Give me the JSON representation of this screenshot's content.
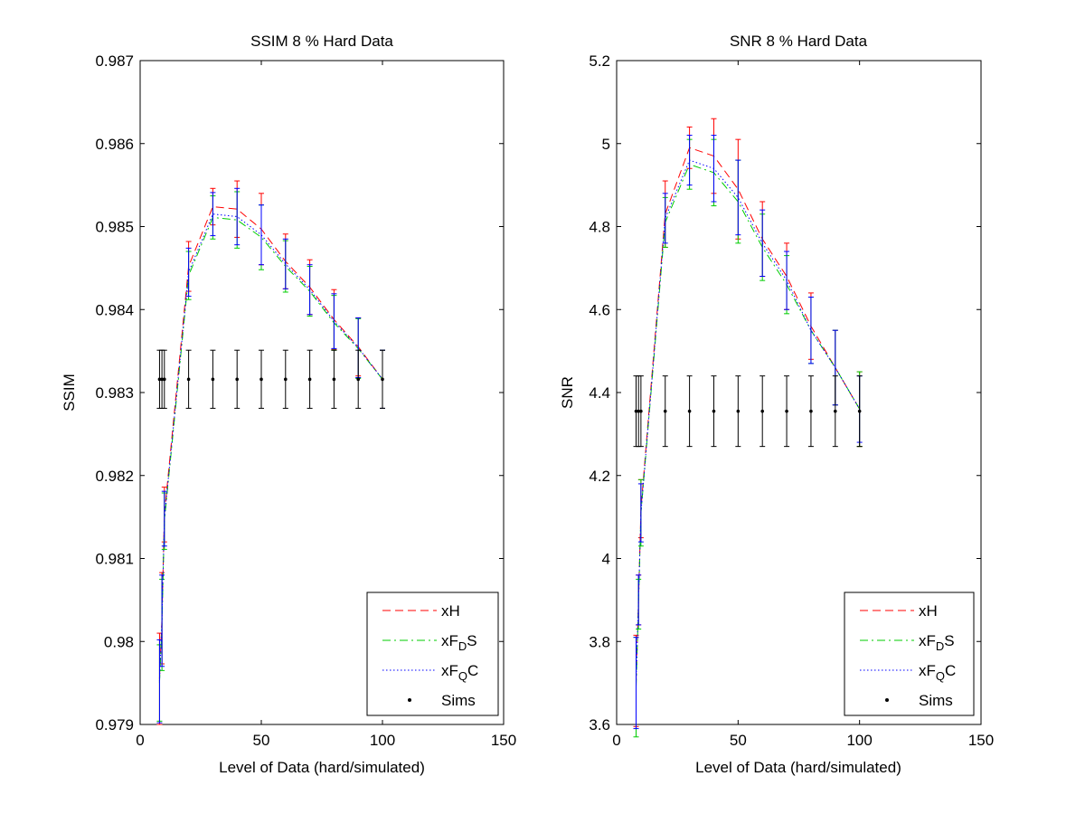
{
  "colors": {
    "xH": "#ff0000",
    "xFDS": "#00cc00",
    "xFQC": "#0000ff",
    "sims": "#000000",
    "background": "#ffffff"
  },
  "legend_position": "bottom-right",
  "chart_data": [
    {
      "type": "line",
      "title": "SSIM 8 % Hard Data",
      "xlabel": "Level of Data (hard/simulated)",
      "ylabel": "SSIM",
      "xlim": [
        0,
        150
      ],
      "ylim": [
        0.979,
        0.987
      ],
      "xticks": [
        "0",
        "50",
        "100",
        "150"
      ],
      "yticks": [
        "0.979",
        "0.98",
        "0.981",
        "0.982",
        "0.983",
        "0.984",
        "0.985",
        "0.986",
        "0.987"
      ],
      "grid": false,
      "legend": {
        "position": "bottom-right",
        "entries": [
          {
            "prefix": "xF",
            "sub": "",
            "suffix": "",
            "text": "xH"
          },
          {
            "prefix": "xF",
            "sub": "D",
            "suffix": "S",
            "text": ""
          },
          {
            "prefix": "xF",
            "sub": "Q",
            "suffix": "C",
            "text": ""
          },
          {
            "prefix": "",
            "sub": "",
            "suffix": "",
            "text": "Sims"
          }
        ]
      },
      "x": [
        8,
        9,
        10,
        20,
        30,
        40,
        50,
        60,
        70,
        80,
        90,
        100
      ],
      "series": [
        {
          "name": "xH",
          "style": "dashed",
          "values": [
            0.97955,
            0.98028,
            0.98153,
            0.98452,
            0.98524,
            0.98521,
            0.98497,
            0.98458,
            0.98427,
            0.98388,
            0.98355,
            0.98316
          ],
          "err": [
            0.00055,
            0.00055,
            0.00033,
            0.0003,
            0.00022,
            0.00034,
            0.00043,
            0.00033,
            0.00033,
            0.00036,
            0.00035,
            0.00035
          ]
        },
        {
          "name": "xFDS",
          "style": "dashdot",
          "values": [
            0.9795,
            0.9802,
            0.98145,
            0.98441,
            0.98511,
            0.98508,
            0.98487,
            0.98452,
            0.98422,
            0.98384,
            0.98353,
            0.98316
          ],
          "err": [
            0.00046,
            0.00055,
            0.00034,
            0.00029,
            0.00026,
            0.00034,
            0.00039,
            0.00031,
            0.0003,
            0.00033,
            0.00036,
            0.00035
          ]
        },
        {
          "name": "xFQC",
          "style": "dotted",
          "values": [
            0.97952,
            0.98025,
            0.98148,
            0.98445,
            0.98515,
            0.98512,
            0.9849,
            0.98455,
            0.98424,
            0.98386,
            0.98354,
            0.98316
          ],
          "err": [
            0.0005,
            0.00055,
            0.00033,
            0.00029,
            0.00026,
            0.00034,
            0.00036,
            0.0003,
            0.0003,
            0.00033,
            0.00036,
            0.00035
          ]
        },
        {
          "name": "Sims",
          "style": "points",
          "values": [
            0.98316,
            0.98316,
            0.98316,
            0.98316,
            0.98316,
            0.98316,
            0.98316,
            0.98316,
            0.98316,
            0.98316,
            0.98316,
            0.98316
          ],
          "err": [
            0.00035,
            0.00035,
            0.00035,
            0.00035,
            0.00035,
            0.00035,
            0.00035,
            0.00035,
            0.00035,
            0.00035,
            0.00035,
            0.00035
          ]
        }
      ]
    },
    {
      "type": "line",
      "title": "SNR 8 % Hard Data",
      "xlabel": "Level of Data (hard/simulated)",
      "ylabel": "SNR",
      "xlim": [
        0,
        150
      ],
      "ylim": [
        3.6,
        5.2
      ],
      "xticks": [
        "0",
        "50",
        "100",
        "150"
      ],
      "yticks": [
        "3.6",
        "3.8",
        "4",
        "4.2",
        "4.4",
        "4.6",
        "4.8",
        "5",
        "5.2"
      ],
      "grid": false,
      "legend": {
        "position": "bottom-right",
        "entries": [
          {
            "prefix": "xF",
            "sub": "",
            "suffix": "",
            "text": "xH"
          },
          {
            "prefix": "xF",
            "sub": "D",
            "suffix": "S",
            "text": ""
          },
          {
            "prefix": "xF",
            "sub": "Q",
            "suffix": "C",
            "text": ""
          },
          {
            "prefix": "",
            "sub": "",
            "suffix": "",
            "text": "Sims"
          }
        ]
      },
      "x": [
        8,
        9,
        10,
        20,
        30,
        40,
        50,
        60,
        70,
        80,
        90,
        100
      ],
      "series": [
        {
          "name": "xH",
          "style": "dashed",
          "values": [
            3.705,
            3.9,
            4.12,
            4.83,
            4.99,
            4.97,
            4.89,
            4.77,
            4.68,
            4.56,
            4.46,
            4.36
          ],
          "err": [
            0.11,
            0.06,
            0.07,
            0.08,
            0.05,
            0.09,
            0.12,
            0.09,
            0.08,
            0.08,
            0.09,
            0.09
          ]
        },
        {
          "name": "xFDS",
          "style": "dashdot",
          "values": [
            3.69,
            3.89,
            4.11,
            4.81,
            4.95,
            4.93,
            4.86,
            4.75,
            4.66,
            4.55,
            4.46,
            4.36
          ],
          "err": [
            0.12,
            0.06,
            0.08,
            0.06,
            0.06,
            0.08,
            0.1,
            0.08,
            0.07,
            0.08,
            0.09,
            0.09
          ]
        },
        {
          "name": "xFQC",
          "style": "dotted",
          "values": [
            3.7,
            3.9,
            4.11,
            4.82,
            4.96,
            4.94,
            4.87,
            4.76,
            4.67,
            4.55,
            4.46,
            4.36
          ],
          "err": [
            0.11,
            0.06,
            0.07,
            0.06,
            0.06,
            0.08,
            0.09,
            0.08,
            0.07,
            0.08,
            0.09,
            0.08
          ]
        },
        {
          "name": "Sims",
          "style": "points",
          "values": [
            4.355,
            4.355,
            4.355,
            4.355,
            4.355,
            4.355,
            4.355,
            4.355,
            4.355,
            4.355,
            4.355,
            4.355
          ],
          "err": [
            0.085,
            0.085,
            0.085,
            0.085,
            0.085,
            0.085,
            0.085,
            0.085,
            0.085,
            0.085,
            0.085,
            0.085
          ]
        }
      ]
    }
  ]
}
